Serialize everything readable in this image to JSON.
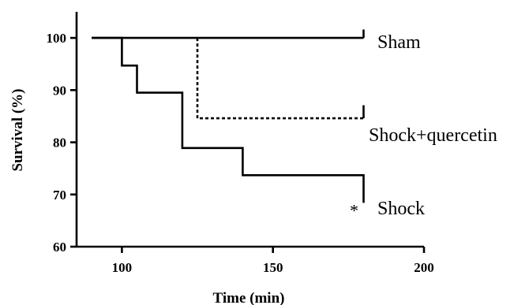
{
  "chart_data": {
    "type": "line",
    "xlabel": "Time (min)",
    "ylabel": "Survival (%)",
    "xlim": [
      85,
      200
    ],
    "ylim": [
      60,
      105
    ],
    "x_ticks": [
      100,
      150,
      200
    ],
    "y_ticks": [
      60,
      70,
      80,
      90,
      100
    ],
    "grid": false,
    "legend": "none",
    "series": [
      {
        "name": "Sham",
        "style": "solid",
        "points": [
          [
            90,
            100
          ],
          [
            180,
            100
          ]
        ],
        "end_mark": [
          180,
          101
        ]
      },
      {
        "name": "Shock+quercetin",
        "style": "dashed",
        "points": [
          [
            125,
            100
          ],
          [
            125,
            84.6
          ],
          [
            180,
            84.6
          ]
        ],
        "end_mark": [
          180,
          86.5
        ]
      },
      {
        "name": "Shock",
        "style": "solid",
        "points": [
          [
            90,
            100
          ],
          [
            100,
            100
          ],
          [
            100,
            94.7
          ],
          [
            105,
            94.7
          ],
          [
            105,
            89.5
          ],
          [
            120,
            89.5
          ],
          [
            120,
            78.9
          ],
          [
            140,
            78.9
          ],
          [
            140,
            73.7
          ],
          [
            180,
            73.7
          ],
          [
            180,
            68.4
          ]
        ]
      }
    ],
    "annotations": [
      {
        "text": "*",
        "x": 177,
        "y": 67
      }
    ]
  }
}
